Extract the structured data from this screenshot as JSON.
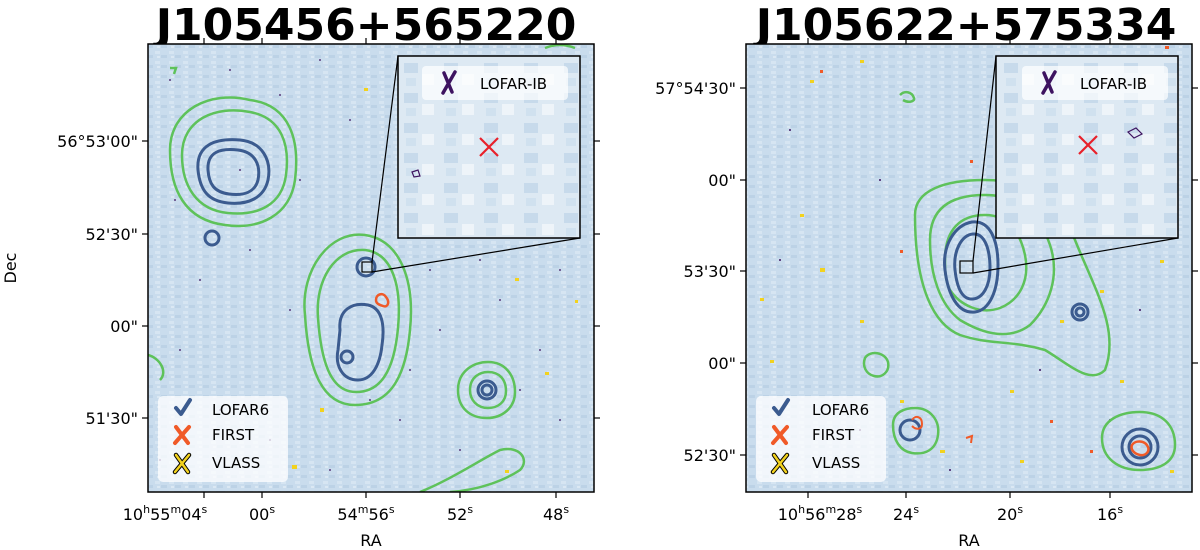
{
  "panels": [
    {
      "title": "J105456+565220",
      "xlabel": "RA",
      "ylabel": "Dec",
      "x_ticks": [
        {
          "main": "10",
          "sup1": "h",
          "mid": "55",
          "sup2": "m",
          "end": "04",
          "sup3": "s"
        },
        {
          "main": "00",
          "sup3": "s"
        },
        {
          "main": "54",
          "sup2": "m",
          "end": "56",
          "sup3": "s"
        },
        {
          "main": "52",
          "sup3": "s"
        },
        {
          "main": "48",
          "sup3": "s"
        }
      ],
      "y_ticks": [
        "56°53'00\"",
        "52'30\"",
        "00\"",
        "51'30\""
      ],
      "legend": [
        "LOFAR6",
        "FIRST",
        "VLASS"
      ],
      "inset_legend": "LOFAR-IB"
    },
    {
      "title": "J105622+575334",
      "xlabel": "RA",
      "ylabel": "",
      "x_ticks": [
        {
          "main": "10",
          "sup1": "h",
          "mid": "56",
          "sup2": "m",
          "end": "28",
          "sup3": "s"
        },
        {
          "main": "24",
          "sup3": "s"
        },
        {
          "main": "20",
          "sup3": "s"
        },
        {
          "main": "16",
          "sup3": "s"
        }
      ],
      "y_ticks": [
        "57°54'30\"",
        "00\"",
        "53'30\"",
        "00\"",
        "52'30\""
      ],
      "legend": [
        "LOFAR6",
        "FIRST",
        "VLASS"
      ],
      "inset_legend": "LOFAR-IB"
    }
  ],
  "colors": {
    "lofar6": "#3b5b8f",
    "first": "#f05a28",
    "vlass": "#f2d21e",
    "lofar_ib": "#3d1360",
    "green_contour": "#5ec25a",
    "marker": "#e8202a",
    "background": "#c9dced"
  },
  "icons": [
    "check-icon",
    "x-icon",
    "x-outline-icon"
  ]
}
